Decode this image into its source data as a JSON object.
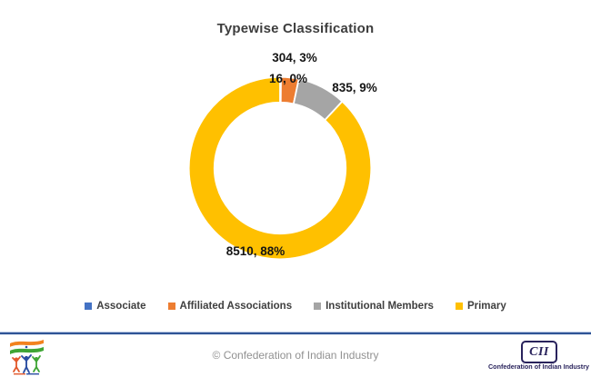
{
  "chart_data": {
    "type": "donut",
    "title": "Typewise Classification",
    "series": [
      {
        "name": "Associate",
        "value": 16,
        "percent_label": "0%",
        "data_label": "16, 0%",
        "color": "#4472C4"
      },
      {
        "name": "Affiliated Associations",
        "value": 304,
        "percent_label": "3%",
        "data_label": "304, 3%",
        "color": "#ED7D31"
      },
      {
        "name": "Institutional Members",
        "value": 835,
        "percent_label": "9%",
        "data_label": "835, 9%",
        "color": "#A5A5A5"
      },
      {
        "name": "Primary",
        "value": 8510,
        "percent_label": "88%",
        "data_label": "8510, 88%",
        "color": "#FFC000"
      }
    ],
    "start_angle_deg": 0,
    "direction": "clockwise",
    "hole_ratio": 0.72,
    "slice_border_color": "#FFFFFF",
    "legend_position": "bottom",
    "data_label_format": "value, percent"
  },
  "footer": {
    "divider_color": "#2F5496",
    "copyright": "© Confederation of Indian Industry",
    "left_logo_icon": "india-tricolor-jumping-figures-logo",
    "cii_logo": {
      "abbr": "CII",
      "caption": "Confederation of Indian Industry",
      "color": "#29235C"
    }
  }
}
